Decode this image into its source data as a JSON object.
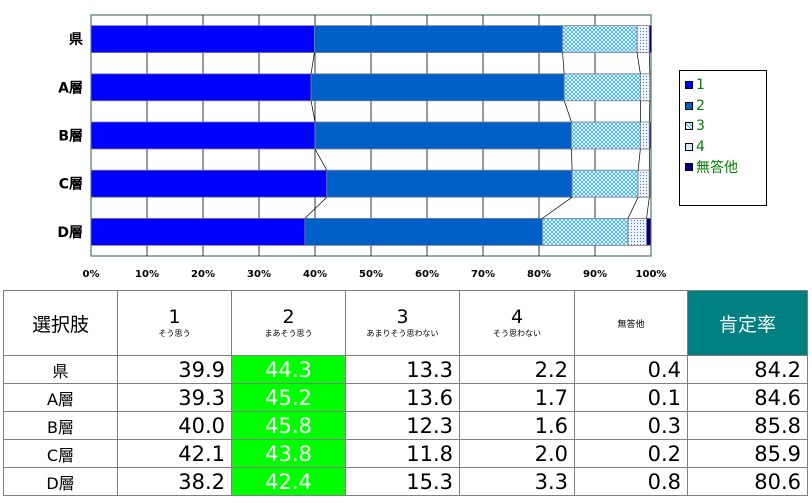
{
  "chart_data": {
    "type": "bar",
    "orientation": "horizontal",
    "stacked": "percent",
    "categories": [
      "県",
      "A層",
      "B層",
      "C層",
      "D層"
    ],
    "series": [
      {
        "name": "1",
        "color": "#0000ff",
        "values": [
          39.9,
          39.3,
          40.0,
          42.1,
          38.2
        ]
      },
      {
        "name": "2",
        "color": "#0060c8",
        "values": [
          44.3,
          45.2,
          45.8,
          43.8,
          42.4
        ]
      },
      {
        "name": "3",
        "color": "#c8ecff",
        "values": [
          13.3,
          13.6,
          12.3,
          11.8,
          15.3
        ]
      },
      {
        "name": "4",
        "color": "#d8e8f8",
        "values": [
          2.2,
          1.7,
          1.6,
          2.0,
          3.3
        ]
      },
      {
        "name": "無答他",
        "color": "#000080",
        "values": [
          0.4,
          0.1,
          0.3,
          0.2,
          0.8
        ]
      }
    ],
    "xticks": [
      "0%",
      "10%",
      "20%",
      "30%",
      "40%",
      "50%",
      "60%",
      "70%",
      "80%",
      "90%",
      "100%"
    ],
    "xlim": [
      0,
      100
    ],
    "grid": true,
    "legend_position": "right"
  },
  "table": {
    "corner": "選択肢",
    "headers": [
      {
        "num": "1",
        "sub": "そう思う"
      },
      {
        "num": "2",
        "sub": "まあそう思う"
      },
      {
        "num": "3",
        "sub": "あまりそう思わない"
      },
      {
        "num": "4",
        "sub": "そう思わない"
      }
    ],
    "muto": "無答他",
    "positive": "肯定率",
    "highlight_color": "#00ff00",
    "rows": [
      {
        "label": "県",
        "values": [
          "39.9",
          "44.3",
          "13.3",
          "2.2",
          "0.4",
          "84.2"
        ]
      },
      {
        "label": "A層",
        "values": [
          "39.3",
          "45.2",
          "13.6",
          "1.7",
          "0.1",
          "84.6"
        ]
      },
      {
        "label": "B層",
        "values": [
          "40.0",
          "45.8",
          "12.3",
          "1.6",
          "0.3",
          "85.8"
        ]
      },
      {
        "label": "C層",
        "values": [
          "42.1",
          "43.8",
          "11.8",
          "2.0",
          "0.2",
          "85.9"
        ]
      },
      {
        "label": "D層",
        "values": [
          "38.2",
          "42.4",
          "15.3",
          "3.3",
          "0.8",
          "80.6"
        ]
      }
    ]
  }
}
